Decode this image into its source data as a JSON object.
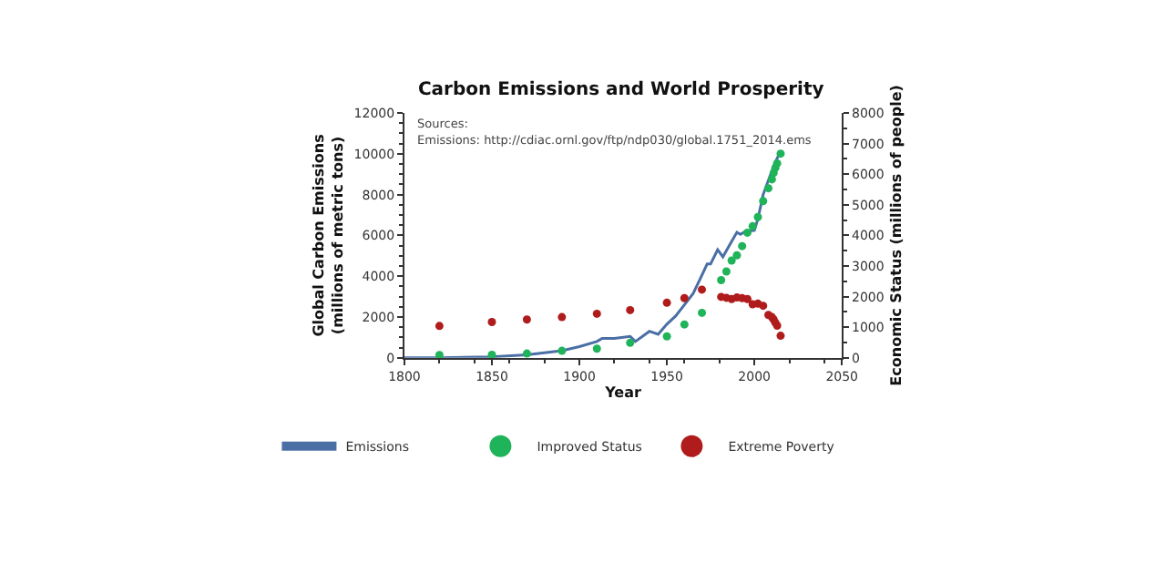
{
  "chart_data": {
    "type": "line",
    "title": "Carbon Emissions and World Prosperity",
    "xlabel": "Year",
    "ylabel": "Global Carbon Emissions\n(millions of metric tons)",
    "y2label": "Economic Status (millions of people)",
    "annotations": [
      "Sources:",
      "Emissions: http://cdiac.ornl.gov/ftp/ndp030/global.1751_2014.ems"
    ],
    "xlim": [
      1800,
      2050
    ],
    "xticks": [
      1800,
      1850,
      1900,
      1950,
      2000,
      2050
    ],
    "ylim": [
      0,
      12000
    ],
    "yticks": [
      0,
      2000,
      4000,
      6000,
      8000,
      10000,
      12000
    ],
    "y2lim": [
      0,
      8000
    ],
    "y2ticks": [
      0,
      1000,
      2000,
      3000,
      4000,
      5000,
      6000,
      7000,
      8000
    ],
    "legend": "bottom",
    "series": [
      {
        "name": "Emissions",
        "color": "#4a6fa5",
        "line_style": "solid",
        "x": [
          1800,
          1820,
          1850,
          1870,
          1890,
          1900,
          1910,
          1913,
          1920,
          1929,
          1932,
          1940,
          1945,
          1950,
          1955,
          1960,
          1965,
          1970,
          1973,
          1975,
          1979,
          1982,
          1985,
          1990,
          1992,
          1995,
          2000,
          2002,
          2005,
          2008,
          2010,
          2012,
          2014
        ],
        "values": [
          0,
          0,
          50,
          150,
          350,
          550,
          800,
          950,
          950,
          1050,
          800,
          1300,
          1150,
          1650,
          2050,
          2600,
          3150,
          4050,
          4600,
          4600,
          5300,
          4950,
          5400,
          6150,
          6050,
          6200,
          6250,
          6800,
          8000,
          8700,
          9150,
          9600,
          9950
        ]
      },
      {
        "name": "Improved Status",
        "type": "scatter",
        "marker": "circle",
        "axis": "y2",
        "color": "#1fb35a",
        "x": [
          1820,
          1850,
          1870,
          1890,
          1910,
          1929,
          1950,
          1960,
          1970,
          1981,
          1984,
          1987,
          1990,
          1993,
          1996,
          1999,
          2002,
          2005,
          2008,
          2010,
          2011,
          2012,
          2013,
          2015
        ],
        "values": [
          90,
          100,
          140,
          230,
          300,
          490,
          700,
          1090,
          1470,
          2540,
          2820,
          3180,
          3350,
          3650,
          4090,
          4300,
          4600,
          5120,
          5540,
          5830,
          6040,
          6210,
          6350,
          6670
        ]
      },
      {
        "name": "Extreme Poverty",
        "type": "scatter",
        "marker": "circle",
        "axis": "y2",
        "color": "#b01c1c",
        "x": [
          1820,
          1850,
          1870,
          1890,
          1910,
          1929,
          1950,
          1960,
          1970,
          1981,
          1984,
          1987,
          1990,
          1993,
          1996,
          1999,
          2002,
          2005,
          2008,
          2010,
          2011,
          2012,
          2013,
          2015
        ],
        "values": [
          1040,
          1170,
          1250,
          1330,
          1440,
          1560,
          1800,
          1950,
          2230,
          1990,
          1960,
          1920,
          1970,
          1950,
          1920,
          1750,
          1770,
          1700,
          1400,
          1330,
          1250,
          1150,
          1050,
          720
        ]
      }
    ]
  }
}
